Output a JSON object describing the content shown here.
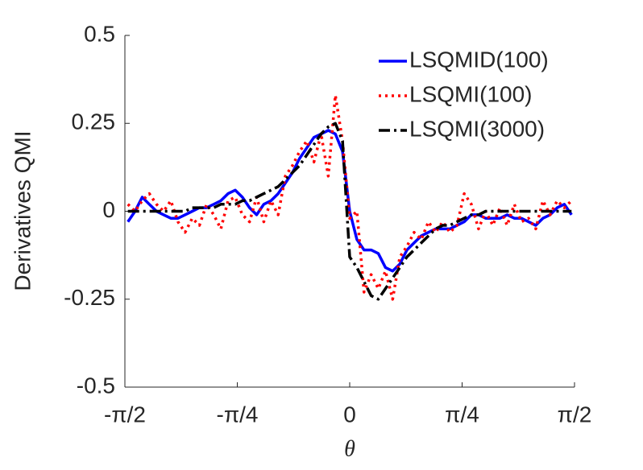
{
  "chart_data": {
    "type": "line",
    "ylabel": "Derivatives QMI",
    "xlabel": "θ",
    "x": [
      -1.55,
      -1.5,
      -1.45,
      -1.4,
      -1.35,
      -1.3,
      -1.25,
      -1.2,
      -1.15,
      -1.1,
      -1.05,
      -1.0,
      -0.95,
      -0.9,
      -0.85,
      -0.8,
      -0.75,
      -0.7,
      -0.65,
      -0.6,
      -0.55,
      -0.5,
      -0.45,
      -0.4,
      -0.35,
      -0.3,
      -0.25,
      -0.2,
      -0.15,
      -0.1,
      -0.05,
      0,
      0.05,
      0.1,
      0.15,
      0.2,
      0.25,
      0.3,
      0.35,
      0.4,
      0.45,
      0.5,
      0.55,
      0.6,
      0.65,
      0.7,
      0.75,
      0.8,
      0.85,
      0.9,
      0.95,
      1.0,
      1.05,
      1.1,
      1.15,
      1.2,
      1.25,
      1.3,
      1.35,
      1.4,
      1.45,
      1.5,
      1.55
    ],
    "series": [
      {
        "name": "LSQMID(100)",
        "color": "#0000ff",
        "style": "solid",
        "values": [
          -0.03,
          0.0,
          0.04,
          0.02,
          0.0,
          -0.01,
          -0.02,
          -0.02,
          -0.01,
          0.0,
          0.01,
          0.01,
          0.02,
          0.03,
          0.05,
          0.06,
          0.04,
          0.01,
          -0.01,
          0.02,
          0.03,
          0.05,
          0.08,
          0.11,
          0.15,
          0.18,
          0.21,
          0.22,
          0.23,
          0.22,
          0.17,
          0.0,
          -0.08,
          -0.11,
          -0.11,
          -0.12,
          -0.16,
          -0.17,
          -0.15,
          -0.11,
          -0.09,
          -0.07,
          -0.06,
          -0.05,
          -0.05,
          -0.05,
          -0.04,
          -0.03,
          -0.01,
          -0.01,
          -0.02,
          -0.02,
          -0.02,
          -0.01,
          -0.02,
          -0.02,
          -0.03,
          -0.04,
          -0.02,
          -0.01,
          0.01,
          0.02,
          -0.01
        ]
      },
      {
        "name": "LSQMI(100)",
        "color": "#ff0000",
        "style": "dotted",
        "values": [
          0.02,
          0.0,
          0.03,
          0.05,
          0.02,
          0.0,
          0.03,
          -0.03,
          -0.06,
          -0.02,
          -0.04,
          0.02,
          -0.01,
          -0.05,
          0.03,
          0.04,
          -0.01,
          -0.03,
          0.04,
          -0.03,
          0.03,
          -0.01,
          0.1,
          0.13,
          0.17,
          0.2,
          0.14,
          0.22,
          0.1,
          0.33,
          0.2,
          -0.02,
          0.0,
          -0.23,
          -0.18,
          -0.22,
          -0.17,
          -0.25,
          -0.13,
          -0.1,
          -0.06,
          -0.08,
          -0.03,
          -0.06,
          -0.03,
          -0.06,
          -0.04,
          0.05,
          0.02,
          -0.05,
          0.0,
          -0.04,
          0.01,
          -0.04,
          0.02,
          -0.03,
          -0.02,
          -0.05,
          0.03,
          -0.01,
          0.03,
          0.01,
          0.03
        ]
      },
      {
        "name": "LSQMI(3000)",
        "color": "#000000",
        "style": "dashdot",
        "values": [
          0.0,
          0.0,
          0.0,
          0.0,
          0.0,
          0.0,
          0.0,
          0.0,
          0.0,
          0.01,
          0.01,
          0.01,
          0.01,
          0.02,
          0.02,
          0.02,
          0.03,
          0.03,
          0.04,
          0.05,
          0.06,
          0.07,
          0.09,
          0.11,
          0.13,
          0.16,
          0.19,
          0.22,
          0.24,
          0.25,
          0.2,
          -0.13,
          -0.16,
          -0.2,
          -0.24,
          -0.25,
          -0.22,
          -0.19,
          -0.16,
          -0.13,
          -0.11,
          -0.09,
          -0.07,
          -0.05,
          -0.04,
          -0.04,
          -0.03,
          -0.02,
          -0.01,
          -0.01,
          0.0,
          0.0,
          0.0,
          0.0,
          0.0,
          0.0,
          0.0,
          0.0,
          0.0,
          0.0,
          0.0,
          0.0,
          0.0
        ]
      }
    ],
    "xlim": [
      -1.5708,
      1.5708
    ],
    "xticks": [
      {
        "value": -1.5708,
        "label": "-π/2"
      },
      {
        "value": -0.7854,
        "label": "-π/4"
      },
      0,
      {
        "value": 0.7854,
        "label": "π/4"
      },
      {
        "value": 1.5708,
        "label": "π/2"
      }
    ],
    "ylim": [
      -0.5,
      0.5
    ],
    "yticks": [
      -0.5,
      -0.25,
      0,
      0.25,
      0.5
    ],
    "legend": "upper right",
    "grid": false
  }
}
